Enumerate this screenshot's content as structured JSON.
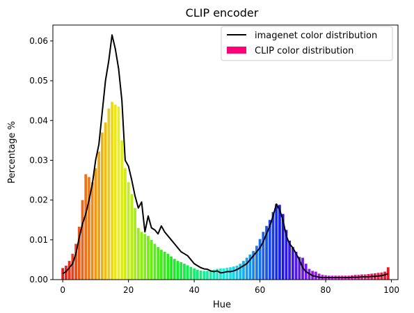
{
  "chart_data": {
    "type": "bar",
    "title": "CLIP encoder",
    "xlabel": "Hue",
    "ylabel": "Percentage %",
    "xlim": [
      -3,
      102
    ],
    "ylim": [
      0,
      0.064
    ],
    "xticks": [
      0,
      20,
      40,
      60,
      80,
      100
    ],
    "xtick_labels": [
      "0",
      "20",
      "40",
      "60",
      "80",
      "100"
    ],
    "yticks": [
      0,
      0.01,
      0.02,
      0.03,
      0.04,
      0.05,
      0.06
    ],
    "ytick_labels": [
      "0.00",
      "0.01",
      "0.02",
      "0.03",
      "0.04",
      "0.05",
      "0.06"
    ],
    "grid": false,
    "legend_position": "top-right",
    "series": [
      {
        "name": "CLIP color distribution",
        "kind": "bar",
        "legend_color": "#ff0077",
        "x": [
          0,
          1,
          2,
          3,
          4,
          5,
          6,
          7,
          8,
          9,
          10,
          11,
          12,
          13,
          14,
          15,
          16,
          17,
          18,
          19,
          20,
          21,
          22,
          23,
          24,
          25,
          26,
          27,
          28,
          29,
          30,
          31,
          32,
          33,
          34,
          35,
          36,
          37,
          38,
          39,
          40,
          41,
          42,
          43,
          44,
          45,
          46,
          47,
          48,
          49,
          50,
          51,
          52,
          53,
          54,
          55,
          56,
          57,
          58,
          59,
          60,
          61,
          62,
          63,
          64,
          65,
          66,
          67,
          68,
          69,
          70,
          71,
          72,
          73,
          74,
          75,
          76,
          77,
          78,
          79,
          80,
          81,
          82,
          83,
          84,
          85,
          86,
          87,
          88,
          89,
          90,
          91,
          92,
          93,
          94,
          95,
          96,
          97,
          98,
          99
        ],
        "values": [
          0.0029,
          0.0035,
          0.0047,
          0.0065,
          0.009,
          0.0133,
          0.02,
          0.0265,
          0.0258,
          0.0245,
          0.028,
          0.0322,
          0.037,
          0.0395,
          0.043,
          0.0447,
          0.044,
          0.0435,
          0.035,
          0.028,
          0.0245,
          0.0215,
          0.018,
          0.013,
          0.012,
          0.0115,
          0.011,
          0.01,
          0.009,
          0.0082,
          0.0075,
          0.007,
          0.0065,
          0.0058,
          0.0052,
          0.0047,
          0.0044,
          0.004,
          0.0036,
          0.0032,
          0.0028,
          0.0025,
          0.0023,
          0.0022,
          0.0022,
          0.0023,
          0.0025,
          0.0027,
          0.0028,
          0.0028,
          0.003,
          0.0031,
          0.0033,
          0.0035,
          0.004,
          0.0047,
          0.0055,
          0.0063,
          0.0072,
          0.0085,
          0.0102,
          0.012,
          0.0135,
          0.015,
          0.017,
          0.019,
          0.0188,
          0.0165,
          0.0125,
          0.0098,
          0.0082,
          0.007,
          0.0057,
          0.0055,
          0.004,
          0.0027,
          0.0022,
          0.002,
          0.0015,
          0.0012,
          0.0011,
          0.001,
          0.001,
          0.001,
          0.001,
          0.001,
          0.001,
          0.001,
          0.0011,
          0.0012,
          0.0012,
          0.0013,
          0.0013,
          0.0014,
          0.0015,
          0.0016,
          0.0017,
          0.0018,
          0.002,
          0.0031
        ]
      },
      {
        "name": "imagenet color distribution",
        "kind": "line",
        "color": "#000000",
        "x": [
          0,
          1,
          2,
          3,
          4,
          5,
          6,
          7,
          8,
          9,
          10,
          11,
          12,
          13,
          14,
          15,
          16,
          17,
          18,
          19,
          20,
          21,
          22,
          23,
          24,
          25,
          26,
          27,
          28,
          29,
          30,
          31,
          32,
          33,
          34,
          35,
          36,
          37,
          38,
          39,
          40,
          41,
          42,
          43,
          44,
          45,
          46,
          47,
          48,
          49,
          50,
          51,
          52,
          53,
          54,
          55,
          56,
          57,
          58,
          59,
          60,
          61,
          62,
          63,
          64,
          65,
          66,
          67,
          68,
          69,
          70,
          71,
          72,
          73,
          74,
          75,
          76,
          77,
          78,
          79,
          80,
          81,
          82,
          83,
          84,
          85,
          86,
          87,
          88,
          89,
          90,
          91,
          92,
          93,
          94,
          95,
          96,
          97,
          98,
          99
        ],
        "values": [
          0.0015,
          0.002,
          0.003,
          0.004,
          0.0065,
          0.0105,
          0.014,
          0.0165,
          0.02,
          0.024,
          0.03,
          0.034,
          0.042,
          0.05,
          0.055,
          0.0615,
          0.058,
          0.053,
          0.045,
          0.03,
          0.0285,
          0.025,
          0.021,
          0.018,
          0.0195,
          0.012,
          0.016,
          0.013,
          0.0125,
          0.0115,
          0.0135,
          0.012,
          0.011,
          0.01,
          0.009,
          0.008,
          0.007,
          0.0065,
          0.006,
          0.005,
          0.004,
          0.0035,
          0.003,
          0.0027,
          0.0026,
          0.0022,
          0.002,
          0.0022,
          0.0017,
          0.0018,
          0.002,
          0.002,
          0.0022,
          0.0025,
          0.003,
          0.0035,
          0.004,
          0.005,
          0.006,
          0.007,
          0.008,
          0.0095,
          0.0115,
          0.0135,
          0.016,
          0.019,
          0.0175,
          0.015,
          0.011,
          0.009,
          0.008,
          0.0065,
          0.005,
          0.003,
          0.002,
          0.0015,
          0.001,
          0.0008,
          0.0006,
          0.0005,
          0.0005,
          0.0005,
          0.0005,
          0.0005,
          0.0005,
          0.0005,
          0.0005,
          0.0005,
          0.0006,
          0.0006,
          0.0006,
          0.0007,
          0.0007,
          0.0007,
          0.0008,
          0.0008,
          0.0009,
          0.001,
          0.0012,
          0.0015
        ]
      }
    ]
  }
}
